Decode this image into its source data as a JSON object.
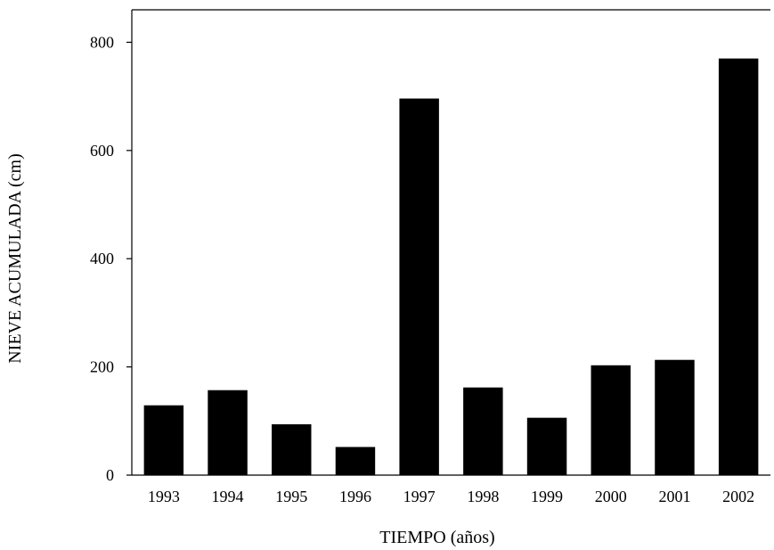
{
  "chart_data": {
    "type": "bar",
    "title": "",
    "xlabel": "TIEMPO (años)",
    "ylabel": "NIEVE ACUMULADA (cm)",
    "categories": [
      "1993",
      "1994",
      "1995",
      "1996",
      "1997",
      "1998",
      "1999",
      "2000",
      "2001",
      "2002"
    ],
    "values": [
      129,
      157,
      94,
      52,
      696,
      162,
      106,
      203,
      213,
      770
    ],
    "ylim": [
      0,
      860
    ],
    "yticks": [
      0,
      200,
      400,
      600,
      800
    ],
    "grid": false,
    "legend": "none",
    "bar_color": "#000000"
  }
}
